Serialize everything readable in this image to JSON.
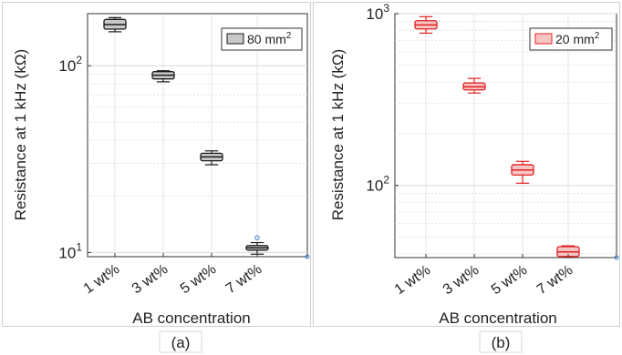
{
  "colors": {
    "panel_a_box_fill": "#c8c8c8",
    "panel_a_box_stroke": "#1a1a1a",
    "panel_b_box_fill": "#f7c4c4",
    "panel_b_box_stroke": "#e02020",
    "outlier": "#3a7fd0",
    "grid": "#d9d9d9"
  },
  "chart_data": [
    {
      "type": "box",
      "panel_label": "(a)",
      "ylabel": "Resistance at 1 kHz (kΩ)",
      "xlabel": "AB concentration",
      "yscale": "log",
      "ylim": [
        9.5,
        190
      ],
      "yticks": [
        {
          "value": 10,
          "base": "10",
          "exp": "1"
        },
        {
          "value": 100,
          "base": "10",
          "exp": "2"
        }
      ],
      "grid": true,
      "legend": {
        "label": "80 mm",
        "sup": "2",
        "placement": "top-right"
      },
      "categories": [
        "1 wt%",
        "3 wt%",
        "5 wt%",
        "7 wt%"
      ],
      "boxes": [
        {
          "min": 152,
          "q1": 157,
          "median": 166,
          "q3": 177,
          "max": 181,
          "outliers": []
        },
        {
          "min": 82,
          "q1": 85,
          "median": 89,
          "q3": 93,
          "max": 94,
          "outliers": []
        },
        {
          "min": 29.5,
          "q1": 31,
          "median": 32.5,
          "q3": 34,
          "max": 35,
          "outliers": []
        },
        {
          "min": 9.8,
          "q1": 10.3,
          "median": 10.6,
          "q3": 10.9,
          "max": 11.3,
          "outliers": [
            12
          ]
        }
      ]
    },
    {
      "type": "box",
      "panel_label": "(b)",
      "ylabel": "Resistance at 1 kHz (kΩ)",
      "xlabel": "AB concentration",
      "yscale": "log",
      "ylim": [
        38,
        1000
      ],
      "yticks": [
        {
          "value": 100,
          "base": "10",
          "exp": "2"
        },
        {
          "value": 1000,
          "base": "10",
          "exp": "3"
        }
      ],
      "grid": true,
      "legend": {
        "label": "20 mm",
        "sup": "2",
        "placement": "top-right"
      },
      "categories": [
        "1 wt%",
        "3 wt%",
        "5 wt%",
        "7 wt%"
      ],
      "boxes": [
        {
          "min": 770,
          "q1": 815,
          "median": 860,
          "q3": 910,
          "max": 960,
          "outliers": []
        },
        {
          "min": 345,
          "q1": 360,
          "median": 375,
          "q3": 395,
          "max": 420,
          "outliers": []
        },
        {
          "min": 103,
          "q1": 115,
          "median": 123,
          "q3": 132,
          "max": 138,
          "outliers": []
        },
        {
          "min": 38.5,
          "q1": 38.6,
          "median": 41,
          "q3": 44,
          "max": 44.5,
          "outliers": []
        }
      ]
    }
  ]
}
